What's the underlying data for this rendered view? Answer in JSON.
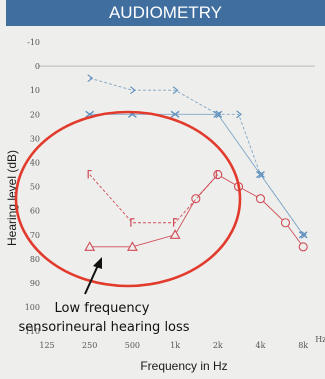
{
  "header": {
    "title": "AUDIOMETRY"
  },
  "chart_data": {
    "type": "line",
    "title": "AUDIOMETRY",
    "xlabel": "Frequency in Hz",
    "ylabel": "Hearing level (dB)",
    "x_tick_labels": [
      "125",
      "250",
      "500",
      "1k",
      "2k",
      "4k",
      "8k"
    ],
    "x_unit_label": "Hz",
    "y_tick_labels": [
      "-10",
      "0",
      "10",
      "20",
      "30",
      "40",
      "50",
      "60",
      "70",
      "80",
      "90",
      "100",
      "110"
    ],
    "ylim": [
      -10,
      110
    ],
    "y_inverted": true,
    "grid": false,
    "colors": {
      "blue": "#5f8fbd",
      "red": "#cf4b57",
      "ellipse": "#e23a2c",
      "header": "#3f6e9f"
    },
    "series": [
      {
        "color": "blue",
        "line": "solid",
        "points": [
          {
            "x": "250",
            "y": 20,
            "symbol": "×"
          },
          {
            "x": "500",
            "y": 20,
            "symbol": "×"
          },
          {
            "x": "1k",
            "y": 20,
            "symbol": "×"
          },
          {
            "x": "2k",
            "y": 20,
            "symbol": "×"
          },
          {
            "x": "4k",
            "y": 45,
            "symbol": "×"
          },
          {
            "x": "8k",
            "y": 70,
            "symbol": "×"
          }
        ]
      },
      {
        "color": "blue",
        "line": "dashed",
        "points": [
          {
            "x": "250",
            "y": 5,
            "symbol": ">"
          },
          {
            "x": "500",
            "y": 10,
            "symbol": ">"
          },
          {
            "x": "1k",
            "y": 10,
            "symbol": ">"
          },
          {
            "x": "2k",
            "y": 20,
            "symbol": ">"
          },
          {
            "x": "2.8k",
            "y": 20,
            "symbol": ">"
          },
          {
            "x": "4k",
            "y": 45,
            "symbol": ">"
          },
          {
            "x": "8k",
            "y": 70,
            "symbol": ">"
          }
        ]
      },
      {
        "color": "red",
        "line": "solid",
        "points": [
          {
            "x": "250",
            "y": 75,
            "symbol": "△"
          },
          {
            "x": "500",
            "y": 75,
            "symbol": "△"
          },
          {
            "x": "1k",
            "y": 70,
            "symbol": "△"
          },
          {
            "x": "1.4k",
            "y": 55,
            "symbol": "○"
          },
          {
            "x": "2k",
            "y": 45,
            "symbol": "○"
          },
          {
            "x": "2.8k",
            "y": 50,
            "symbol": "○"
          },
          {
            "x": "4k",
            "y": 55,
            "symbol": "○"
          },
          {
            "x": "6k",
            "y": 65,
            "symbol": "○"
          },
          {
            "x": "8k",
            "y": 75,
            "symbol": "○"
          }
        ]
      },
      {
        "color": "red",
        "line": "dashed",
        "points": [
          {
            "x": "250",
            "y": 45,
            "symbol": "["
          },
          {
            "x": "500",
            "y": 65,
            "symbol": "["
          },
          {
            "x": "1k",
            "y": 65,
            "symbol": "["
          },
          {
            "x": "2k",
            "y": 45,
            "symbol": "["
          }
        ]
      }
    ],
    "annotations": [
      {
        "text": "Low frequency",
        "shape": "ellipse"
      },
      {
        "text": "sensorineural hearing loss"
      }
    ]
  }
}
